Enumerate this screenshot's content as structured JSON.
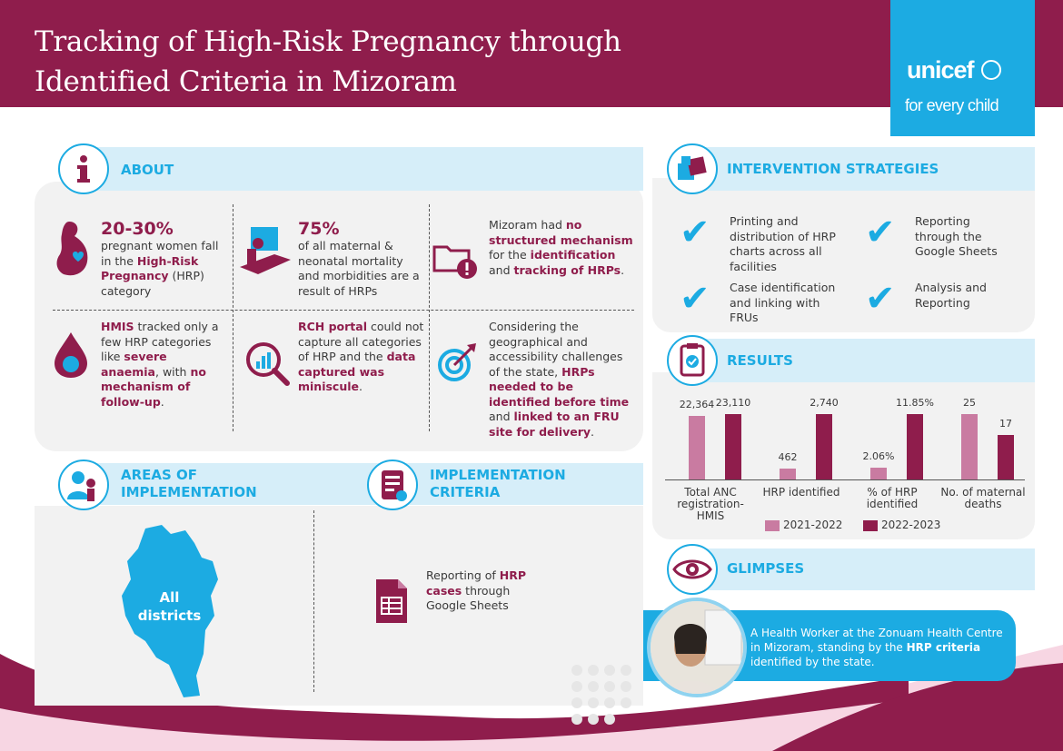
{
  "header": {
    "title_line1": "Tracking of High-Risk Pregnancy through",
    "title_line2": "Identified Criteria in Mizoram",
    "logo_word": "unicef",
    "logo_tagline": "for every child"
  },
  "about": {
    "title": "ABOUT",
    "icon": "info-icon",
    "cell1": {
      "stat": "20-30%",
      "t1": "pregnant women fall in the ",
      "b1": "High-Risk Pregnancy",
      "t2": " (HRP) category"
    },
    "cell2": {
      "stat": "75%",
      "t1": "of all maternal & neonatal mortality and morbidities are a result of HRPs"
    },
    "cell3": {
      "t1": "Mizoram had ",
      "b1": "no structured mechanism",
      "t2": " for the ",
      "b2": "identification",
      "t3": " and ",
      "b3": "tracking of HRPs",
      "t4": "."
    },
    "cell4": {
      "b1": "HMIS",
      "t1": " tracked only a few HRP categories like ",
      "b2": "severe anaemia",
      "t2": ", with ",
      "b3": "no mechanism of follow-up",
      "t3": "."
    },
    "cell5": {
      "b1": "RCH portal",
      "t1": " could not capture all categories of HRP and the ",
      "b2": "data captured was miniscule",
      "t2": "."
    },
    "cell6": {
      "t1": "Considering the geographical and accessibility challenges of the state, ",
      "b1": "HRPs needed to be identified before time",
      "t2": " and ",
      "b2": "linked to an FRU site for delivery",
      "t3": "."
    }
  },
  "areas": {
    "title_line1": "AREAS OF",
    "title_line2": "IMPLEMENTATION",
    "map_label_line1": "All",
    "map_label_line2": "districts"
  },
  "criteria": {
    "title_line1": "IMPLEMENTATION",
    "title_line2": "CRITERIA",
    "item": {
      "t1": "Reporting of ",
      "b1": "HRP cases",
      "t2": " through Google Sheets"
    }
  },
  "strategies": {
    "title": "INTERVENTION STRATEGIES",
    "items": [
      "Printing and distribution of HRP charts across all facilities",
      "Reporting through the Google Sheets",
      "Case identification and linking with FRUs",
      "Analysis and Reporting"
    ]
  },
  "results": {
    "title": "RESULTS"
  },
  "chart_data": {
    "type": "bar",
    "categories": [
      "Total ANC registration-HMIS",
      "HRP identified",
      "% of HRP identified",
      "No. of maternal deaths"
    ],
    "series": [
      {
        "name": "2021-2022",
        "values": [
          "22,364",
          "462",
          "2.06%",
          "25"
        ],
        "color": "#c97ba1"
      },
      {
        "name": "2022-2023",
        "values": [
          "23,110",
          "2,740",
          "11.85%",
          "17"
        ],
        "color": "#8f1d4c"
      }
    ]
  },
  "glimpses": {
    "title": "GLIMPSES",
    "caption": {
      "t1": "A Health Worker at the Zonuam Health Centre in Mizoram, standing by the ",
      "b1": "HRP criteria",
      "t2": " identified by the state."
    }
  },
  "colors": {
    "maroon": "#8f1d4c",
    "blue": "#1cabe2",
    "light_blue": "#d6eef9",
    "pink": "#c97ba1"
  }
}
